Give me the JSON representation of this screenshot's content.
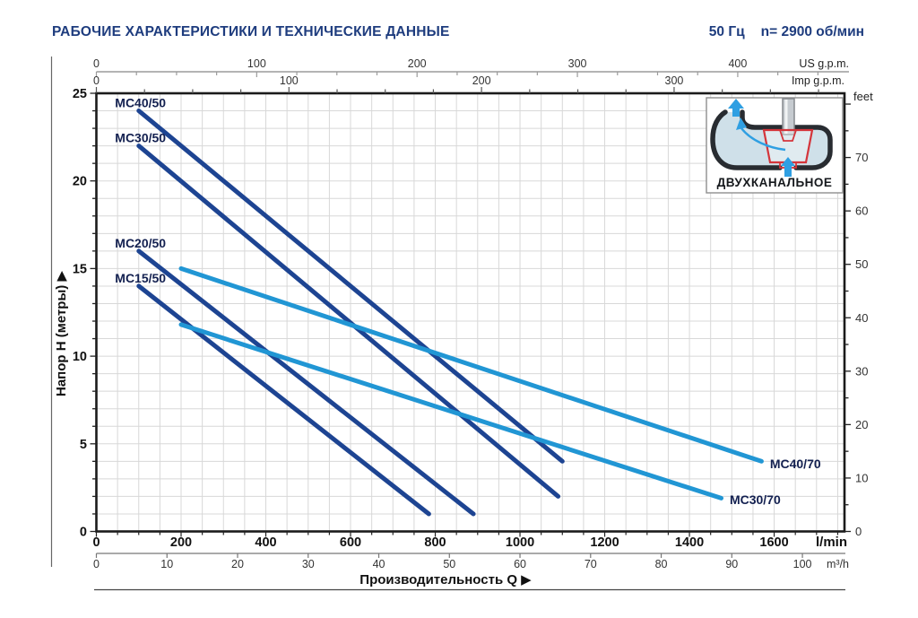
{
  "header": {
    "title": "РАБОЧИЕ ХАРАКТЕРИСТИКИ И ТЕХНИЧЕСКИЕ ДАННЫЕ",
    "frequency": "50 Гц",
    "speed": "n= 2900 об/мин"
  },
  "inset": {
    "label": "ДВУХКАНАЛЬНОЕ"
  },
  "colors": {
    "brand_navy": "#1e3c7e",
    "curve_dark": "#1d4492",
    "curve_light": "#2196d4",
    "curve_label": "#132050",
    "grid": "#d8d8d8",
    "plot_border": "#1b1b1b",
    "axis_gray": "#9b9b9b",
    "text_dark": "#111111",
    "text_gray": "#333333"
  },
  "chart_data": {
    "type": "line",
    "title": "",
    "xlabel": "Производительность Q  ▶",
    "ylabel": "Напор H (метры)  ▶",
    "grid": true,
    "xlim_lmin": [
      0,
      1766
    ],
    "ylim_m": [
      0,
      25
    ],
    "grid_step_lmin": 50,
    "grid_step_m": 1,
    "axes": {
      "x_lmin": {
        "unit": "l/min",
        "labels": [
          0,
          200,
          400,
          600,
          800,
          1000,
          1200,
          1400,
          1600
        ],
        "minor_step": 50,
        "minor_max": 1750
      },
      "x_m3h": {
        "unit": "m³/h",
        "labels": [
          0,
          10,
          20,
          30,
          40,
          50,
          60,
          70,
          80,
          90,
          100
        ]
      },
      "x_usgpm": {
        "unit": "US g.p.m.",
        "labels": [
          0,
          100,
          200,
          300,
          400
        ],
        "minor_step": 25,
        "minor_max": 460
      },
      "x_impgpm": {
        "unit": "Imp g.p.m.",
        "labels": [
          0,
          100,
          200,
          300
        ],
        "minor_step": 25,
        "minor_max": 375
      },
      "y_m": {
        "labels": [
          0,
          5,
          10,
          15,
          20,
          25
        ],
        "minor_step": 1,
        "minor_max": 25
      },
      "y_feet": {
        "unit": "feet",
        "labels": [
          0,
          10,
          20,
          30,
          40,
          50,
          60,
          70
        ],
        "minor_step": 5,
        "minor_max": 80
      }
    },
    "series": [
      {
        "name": "MC40/50",
        "color": "dark",
        "points": [
          [
            100,
            24.0
          ],
          [
            1100,
            4.0
          ]
        ],
        "label_q": 44,
        "label_h": 24.2,
        "label_anchor": "start"
      },
      {
        "name": "MC30/50",
        "color": "dark",
        "points": [
          [
            100,
            22.0
          ],
          [
            1090,
            2.0
          ]
        ],
        "label_q": 44,
        "label_h": 22.2,
        "label_anchor": "start"
      },
      {
        "name": "MC20/50",
        "color": "dark",
        "points": [
          [
            100,
            16.0
          ],
          [
            890,
            1.0
          ]
        ],
        "label_q": 44,
        "label_h": 16.2,
        "label_anchor": "start"
      },
      {
        "name": "MC15/50",
        "color": "dark",
        "points": [
          [
            100,
            14.0
          ],
          [
            785,
            1.0
          ]
        ],
        "label_q": 44,
        "label_h": 14.2,
        "label_anchor": "start"
      },
      {
        "name": "MC40/70",
        "color": "light",
        "points": [
          [
            200,
            15.0
          ],
          [
            1570,
            4.0
          ]
        ],
        "label_q": 1590,
        "label_h": 3.6,
        "label_anchor": "start"
      },
      {
        "name": "MC30/70",
        "color": "light",
        "points": [
          [
            200,
            11.8
          ],
          [
            1475,
            1.9
          ]
        ],
        "label_q": 1495,
        "label_h": 1.55,
        "label_anchor": "start"
      }
    ]
  }
}
